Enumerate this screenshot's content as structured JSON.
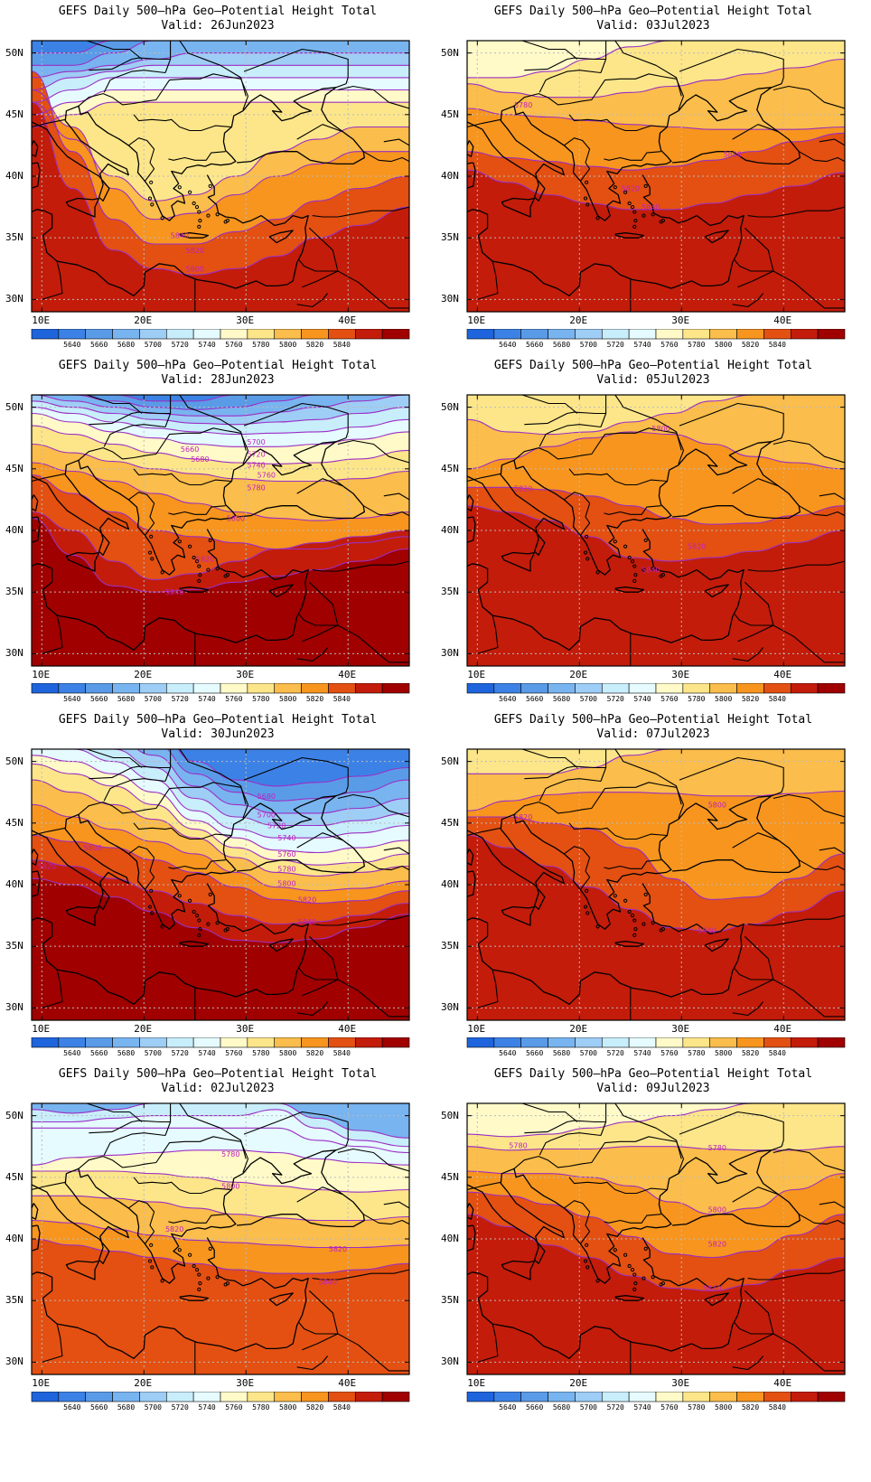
{
  "colors": {
    "levels": [
      "#1e64dc",
      "#3c82e6",
      "#5a9be8",
      "#78b4f0",
      "#9ecdf6",
      "#c8eefb",
      "#e6fbff",
      "#fffac8",
      "#fde68a",
      "#fbbd4b",
      "#f7951e",
      "#e35012",
      "#c31c0a",
      "#a00000"
    ],
    "contour": "#9b2fc4",
    "contour_label": "#c020c0",
    "coast": "#000000",
    "grid": "#bbbbbb"
  },
  "colorbar_labels": [
    "5640",
    "5660",
    "5680",
    "5700",
    "5720",
    "5740",
    "5760",
    "5780",
    "5800",
    "5820",
    "5840"
  ],
  "x_ticks": [
    "10E",
    "20E",
    "30E",
    "40E"
  ],
  "y_ticks": [
    "50N",
    "45N",
    "40N",
    "35N",
    "30N"
  ],
  "panels": [
    {
      "title": "GEFS Daily 500–hPa Geo–Potential Height Total",
      "valid": "Valid: 26Jun2023",
      "map_labels": [
        "5840",
        "5820",
        "5800"
      ]
    },
    {
      "title": "GEFS Daily 500–hPa Geo–Potential Height Total",
      "valid": "Valid: 03Jul2023",
      "map_labels": [
        "5780",
        "5800",
        "5820",
        "5840"
      ]
    },
    {
      "title": "GEFS Daily 500–hPa Geo–Potential Height Total",
      "valid": "Valid: 28Jun2023",
      "map_labels": [
        "5700",
        "5720",
        "5740",
        "5760",
        "5660",
        "5680",
        "5780",
        "5800",
        "5820",
        "5840"
      ]
    },
    {
      "title": "GEFS Daily 500–hPa Geo–Potential Height Total",
      "valid": "Valid: 05Jul2023",
      "map_labels": [
        "5800",
        "5820",
        "5820",
        "5840"
      ]
    },
    {
      "title": "GEFS Daily 500–hPa Geo–Potential Height Total",
      "valid": "Valid: 30Jun2023",
      "map_labels": [
        "5680",
        "5700",
        "5720",
        "5740",
        "5760",
        "5780",
        "5800",
        "5820",
        "5840",
        "5800",
        "5820"
      ]
    },
    {
      "title": "GEFS Daily 500–hPa Geo–Potential Height Total",
      "valid": "Valid: 07Jul2023",
      "map_labels": [
        "5800",
        "5820",
        "5840"
      ]
    },
    {
      "title": "GEFS Daily 500–hPa Geo–Potential Height Total",
      "valid": "Valid: 02Jul2023",
      "map_labels": [
        "5780",
        "5800",
        "5820",
        "5820",
        "5840"
      ]
    },
    {
      "title": "GEFS Daily 500–hPa Geo–Potential Height Total",
      "valid": "Valid: 09Jul2023",
      "map_labels": [
        "5780",
        "5780",
        "5800",
        "5820",
        "5840"
      ]
    }
  ]
}
